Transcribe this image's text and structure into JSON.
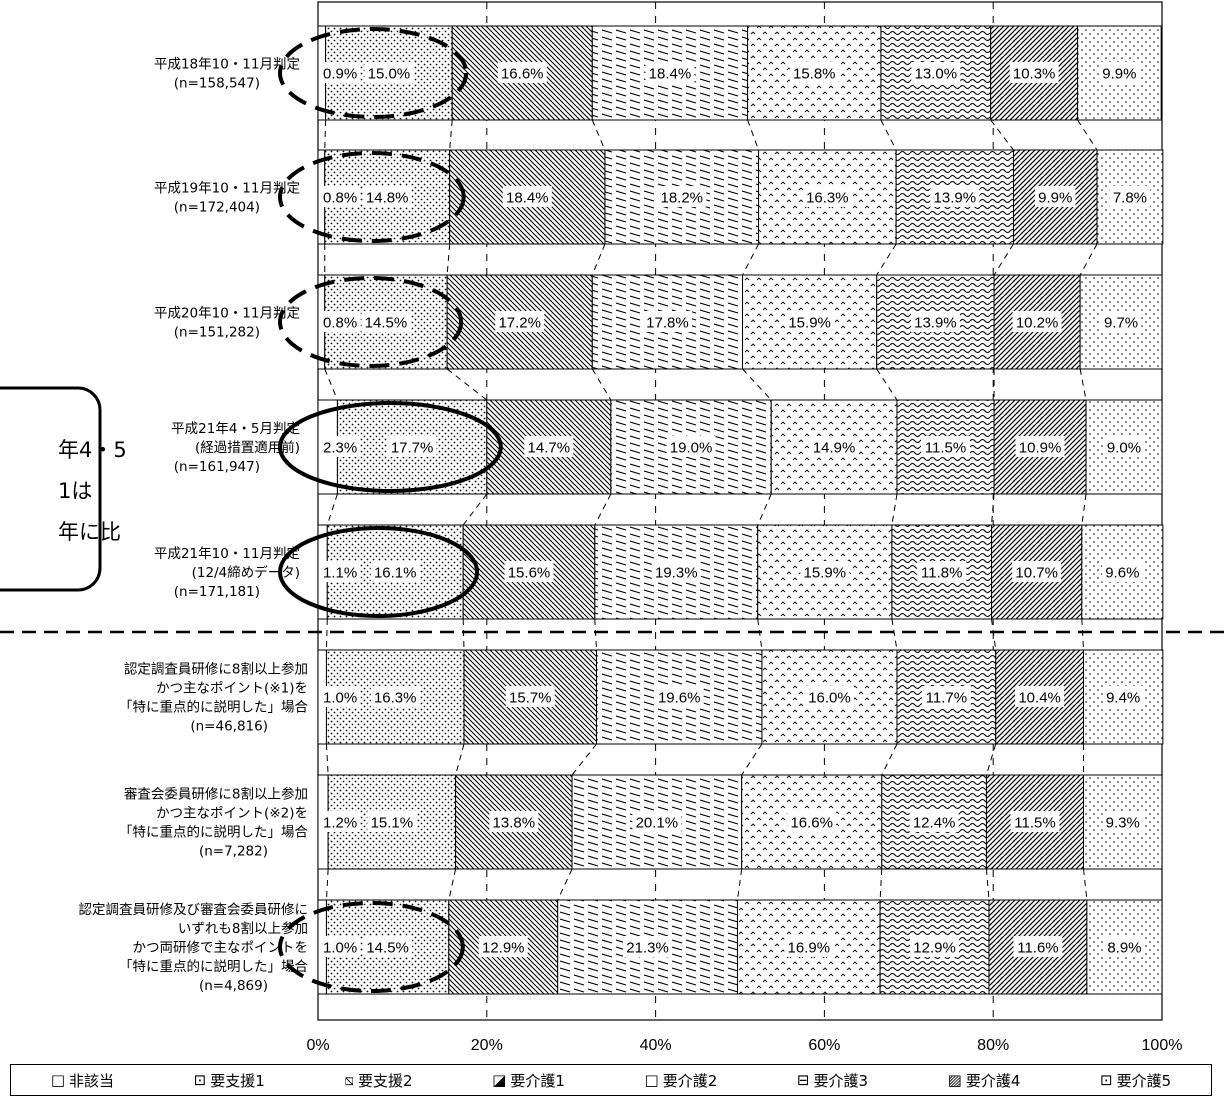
{
  "chart_data": {
    "type": "bar",
    "orientation": "horizontal",
    "stacked": "100%",
    "xlim": [
      0,
      100
    ],
    "x_ticks": [
      "0%",
      "20%",
      "40%",
      "60%",
      "80%",
      "100%"
    ],
    "categories": [
      [
        "平成18年10・11月判定",
        "(n=158,547)"
      ],
      [
        "平成19年10・11月判定",
        "(n=172,404)"
      ],
      [
        "平成20年10・11月判定",
        "(n=151,282)"
      ],
      [
        "平成21年4・5月判定",
        "(経過措置適用前)",
        "(n=161,947)"
      ],
      [
        "平成21年10・11月判定",
        "(12/4締めデータ)",
        "(n=171,181)"
      ],
      [
        "認定調査員研修に8割以上参加",
        "かつ主なポイント(※1)を",
        "「特に重点的に説明した」場合",
        "(n=46,816)"
      ],
      [
        "審査会委員研修に8割以上参加",
        "かつ主なポイント(※2)を",
        "「特に重点的に説明した」場合",
        "(n=7,282)"
      ],
      [
        "認定調査員研修及び審査会委員研修に",
        "いずれも8割以上参加",
        "かつ両研修で主なポイントを",
        "「特に重点的に説明した」場合",
        "(n=4,869)"
      ]
    ],
    "series": [
      {
        "name": "非該当",
        "values": [
          0.9,
          0.8,
          0.8,
          2.3,
          1.1,
          1.0,
          1.2,
          1.0
        ]
      },
      {
        "name": "要支援1",
        "values": [
          15.0,
          14.8,
          14.5,
          17.7,
          16.1,
          16.3,
          15.1,
          14.5
        ]
      },
      {
        "name": "要支援2",
        "values": [
          16.6,
          18.4,
          17.2,
          14.7,
          15.6,
          15.7,
          13.8,
          12.9
        ]
      },
      {
        "name": "要介護1",
        "values": [
          18.4,
          18.2,
          17.8,
          19.0,
          19.3,
          19.6,
          20.1,
          21.3
        ]
      },
      {
        "name": "要介護2",
        "values": [
          15.8,
          16.3,
          15.9,
          14.9,
          15.9,
          16.0,
          16.6,
          16.9
        ]
      },
      {
        "name": "要介護3",
        "values": [
          13.0,
          13.9,
          13.9,
          11.5,
          11.8,
          11.7,
          12.4,
          12.9
        ]
      },
      {
        "name": "要介護4",
        "values": [
          10.3,
          9.9,
          10.2,
          10.9,
          10.7,
          10.4,
          11.5,
          11.6
        ]
      },
      {
        "name": "要介護5",
        "values": [
          9.9,
          7.8,
          9.7,
          9.0,
          9.6,
          9.4,
          9.3,
          8.9
        ]
      }
    ],
    "value_labels": [
      [
        "0.9%",
        "15.0%",
        "16.6%",
        "18.4%",
        "15.8%",
        "13.0%",
        "10.3%",
        "9.9%"
      ],
      [
        "0.8%",
        "14.8%",
        "18.4%",
        "18.2%",
        "16.3%",
        "13.9%",
        "9.9%",
        "7.8%"
      ],
      [
        "0.8%",
        "14.5%",
        "17.2%",
        "17.8%",
        "15.9%",
        "13.9%",
        "10.2%",
        "9.7%"
      ],
      [
        "2.3%",
        "17.7%",
        "14.7%",
        "19.0%",
        "14.9%",
        "11.5%",
        "10.9%",
        "9.0%"
      ],
      [
        "1.1%",
        "16.1%",
        "15.6%",
        "19.3%",
        "15.9%",
        "11.8%",
        "10.7%",
        "9.6%"
      ],
      [
        "1.0%",
        "16.3%",
        "15.7%",
        "19.6%",
        "16.0%",
        "11.7%",
        "10.4%",
        "9.4%"
      ],
      [
        "1.2%",
        "15.1%",
        "13.8%",
        "20.1%",
        "16.6%",
        "12.4%",
        "11.5%",
        "9.3%"
      ],
      [
        "1.0%",
        "14.5%",
        "12.9%",
        "21.3%",
        "16.9%",
        "12.9%",
        "11.6%",
        "8.9%"
      ]
    ],
    "legend_position": "bottom",
    "circled_rows": {
      "dashed": [
        0,
        1,
        2,
        7
      ],
      "solid": [
        3,
        4
      ]
    },
    "separator_after_row": 4,
    "callout_text": [
      "年4・5",
      "1は",
      "年に比"
    ]
  },
  "legend": {
    "items": [
      {
        "symbol": "□",
        "label": "非該当"
      },
      {
        "symbol": "⊡",
        "label": "要支援1"
      },
      {
        "symbol": "⧅",
        "label": "要支援2"
      },
      {
        "symbol": "◪",
        "label": "要介護1"
      },
      {
        "symbol": "□",
        "label": "要介護2"
      },
      {
        "symbol": "⊟",
        "label": "要介護3"
      },
      {
        "symbol": "▨",
        "label": "要介護4"
      },
      {
        "symbol": "⊡",
        "label": "要介護5"
      }
    ]
  }
}
